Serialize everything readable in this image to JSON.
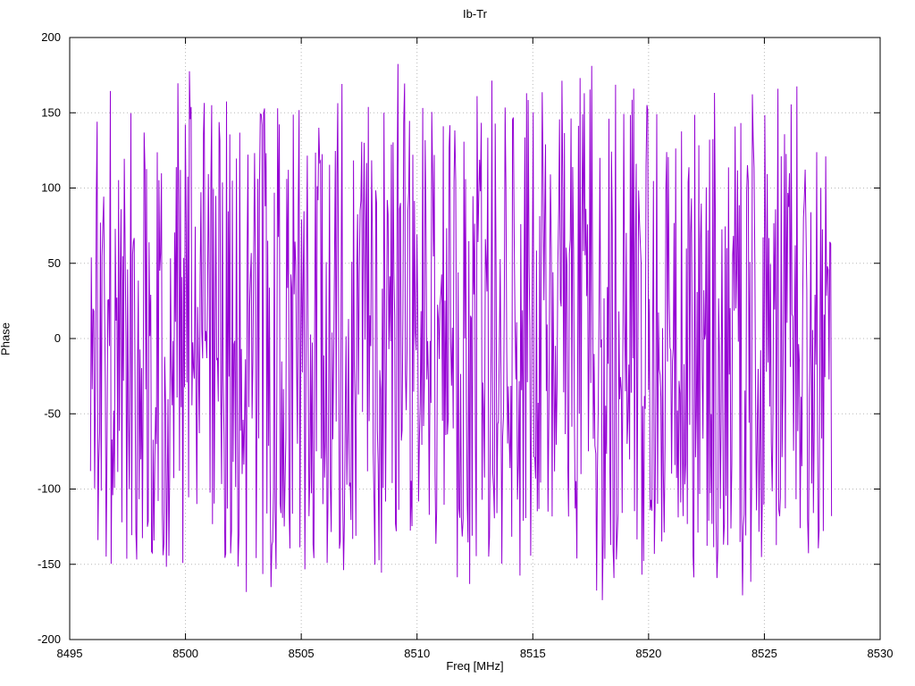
{
  "chart_data": {
    "type": "line",
    "title": "Ib-Tr",
    "xlabel": "Freq [MHz]",
    "ylabel": "Phase",
    "xlim": [
      8495,
      8530
    ],
    "ylim": [
      -200,
      200
    ],
    "xticks": [
      8495,
      8500,
      8505,
      8510,
      8515,
      8520,
      8525,
      8530
    ],
    "yticks": [
      -200,
      -150,
      -100,
      -50,
      0,
      50,
      100,
      150,
      200
    ],
    "grid": true,
    "grid_style": "dotted",
    "legend": "none",
    "series": [
      {
        "name": "phase",
        "color": "#9400d3",
        "description": "wrapped phase, dense noise-like trace spanning full +/-180 deg range",
        "generator": {
          "kind": "seeded-uniform-random",
          "seed": 1337,
          "n_points": 900,
          "x_start": 8495.9,
          "x_end": 8527.9,
          "y_min": -177,
          "y_max": 185
        }
      }
    ]
  },
  "colors": {
    "line": "#9400d3",
    "grid": "#b8b8b8",
    "axis": "#000000",
    "background": "#ffffff"
  }
}
